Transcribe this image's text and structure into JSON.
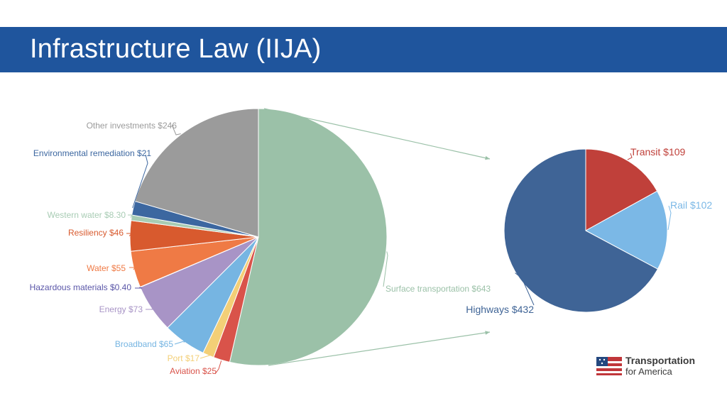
{
  "slide": {
    "title": "Infrastructure Law (IIJA)"
  },
  "logo": {
    "line1": "Transportation",
    "line2": "for America"
  },
  "chart_data": [
    {
      "type": "pie",
      "slices": [
        {
          "name": "Surface transportation",
          "value": 643,
          "label": "Surface transportation $643",
          "color": "#9bc1a8"
        },
        {
          "name": "Aviation",
          "value": 25,
          "label": "Aviation $25",
          "color": "#d9534a"
        },
        {
          "name": "Port",
          "value": 17,
          "label": "Port $17",
          "color": "#f3cf77"
        },
        {
          "name": "Broadband",
          "value": 65,
          "label": "Broadband $65",
          "color": "#76b5e2"
        },
        {
          "name": "Energy",
          "value": 73,
          "label": "Energy $73",
          "color": "#a894c6"
        },
        {
          "name": "Hazardous materials",
          "value": 0.4,
          "label": "Hazardous materials $0.40",
          "color": "#5a56a8"
        },
        {
          "name": "Water",
          "value": 55,
          "label": "Water $55",
          "color": "#ef7a45"
        },
        {
          "name": "Resiliency",
          "value": 46,
          "label": "Resiliency $46",
          "color": "#d85a2e"
        },
        {
          "name": "Western water",
          "value": 8.3,
          "label": "Western water $8.30",
          "color": "#a8ccb4"
        },
        {
          "name": "Environmental remediation",
          "value": 21,
          "label": "Environmental remediation $21",
          "color": "#3c67a0"
        },
        {
          "name": "Other investments",
          "value": 246,
          "label": "Other investments $246",
          "color": "#9b9b9b"
        }
      ]
    },
    {
      "type": "pie",
      "slices": [
        {
          "name": "Transit",
          "value": 109,
          "label": "Transit $109",
          "color": "#c0403a"
        },
        {
          "name": "Rail",
          "value": 102,
          "label": "Rail $102",
          "color": "#7bb8e6"
        },
        {
          "name": "Highways",
          "value": 432,
          "label": "Highways $432",
          "color": "#3f6496"
        }
      ]
    }
  ]
}
